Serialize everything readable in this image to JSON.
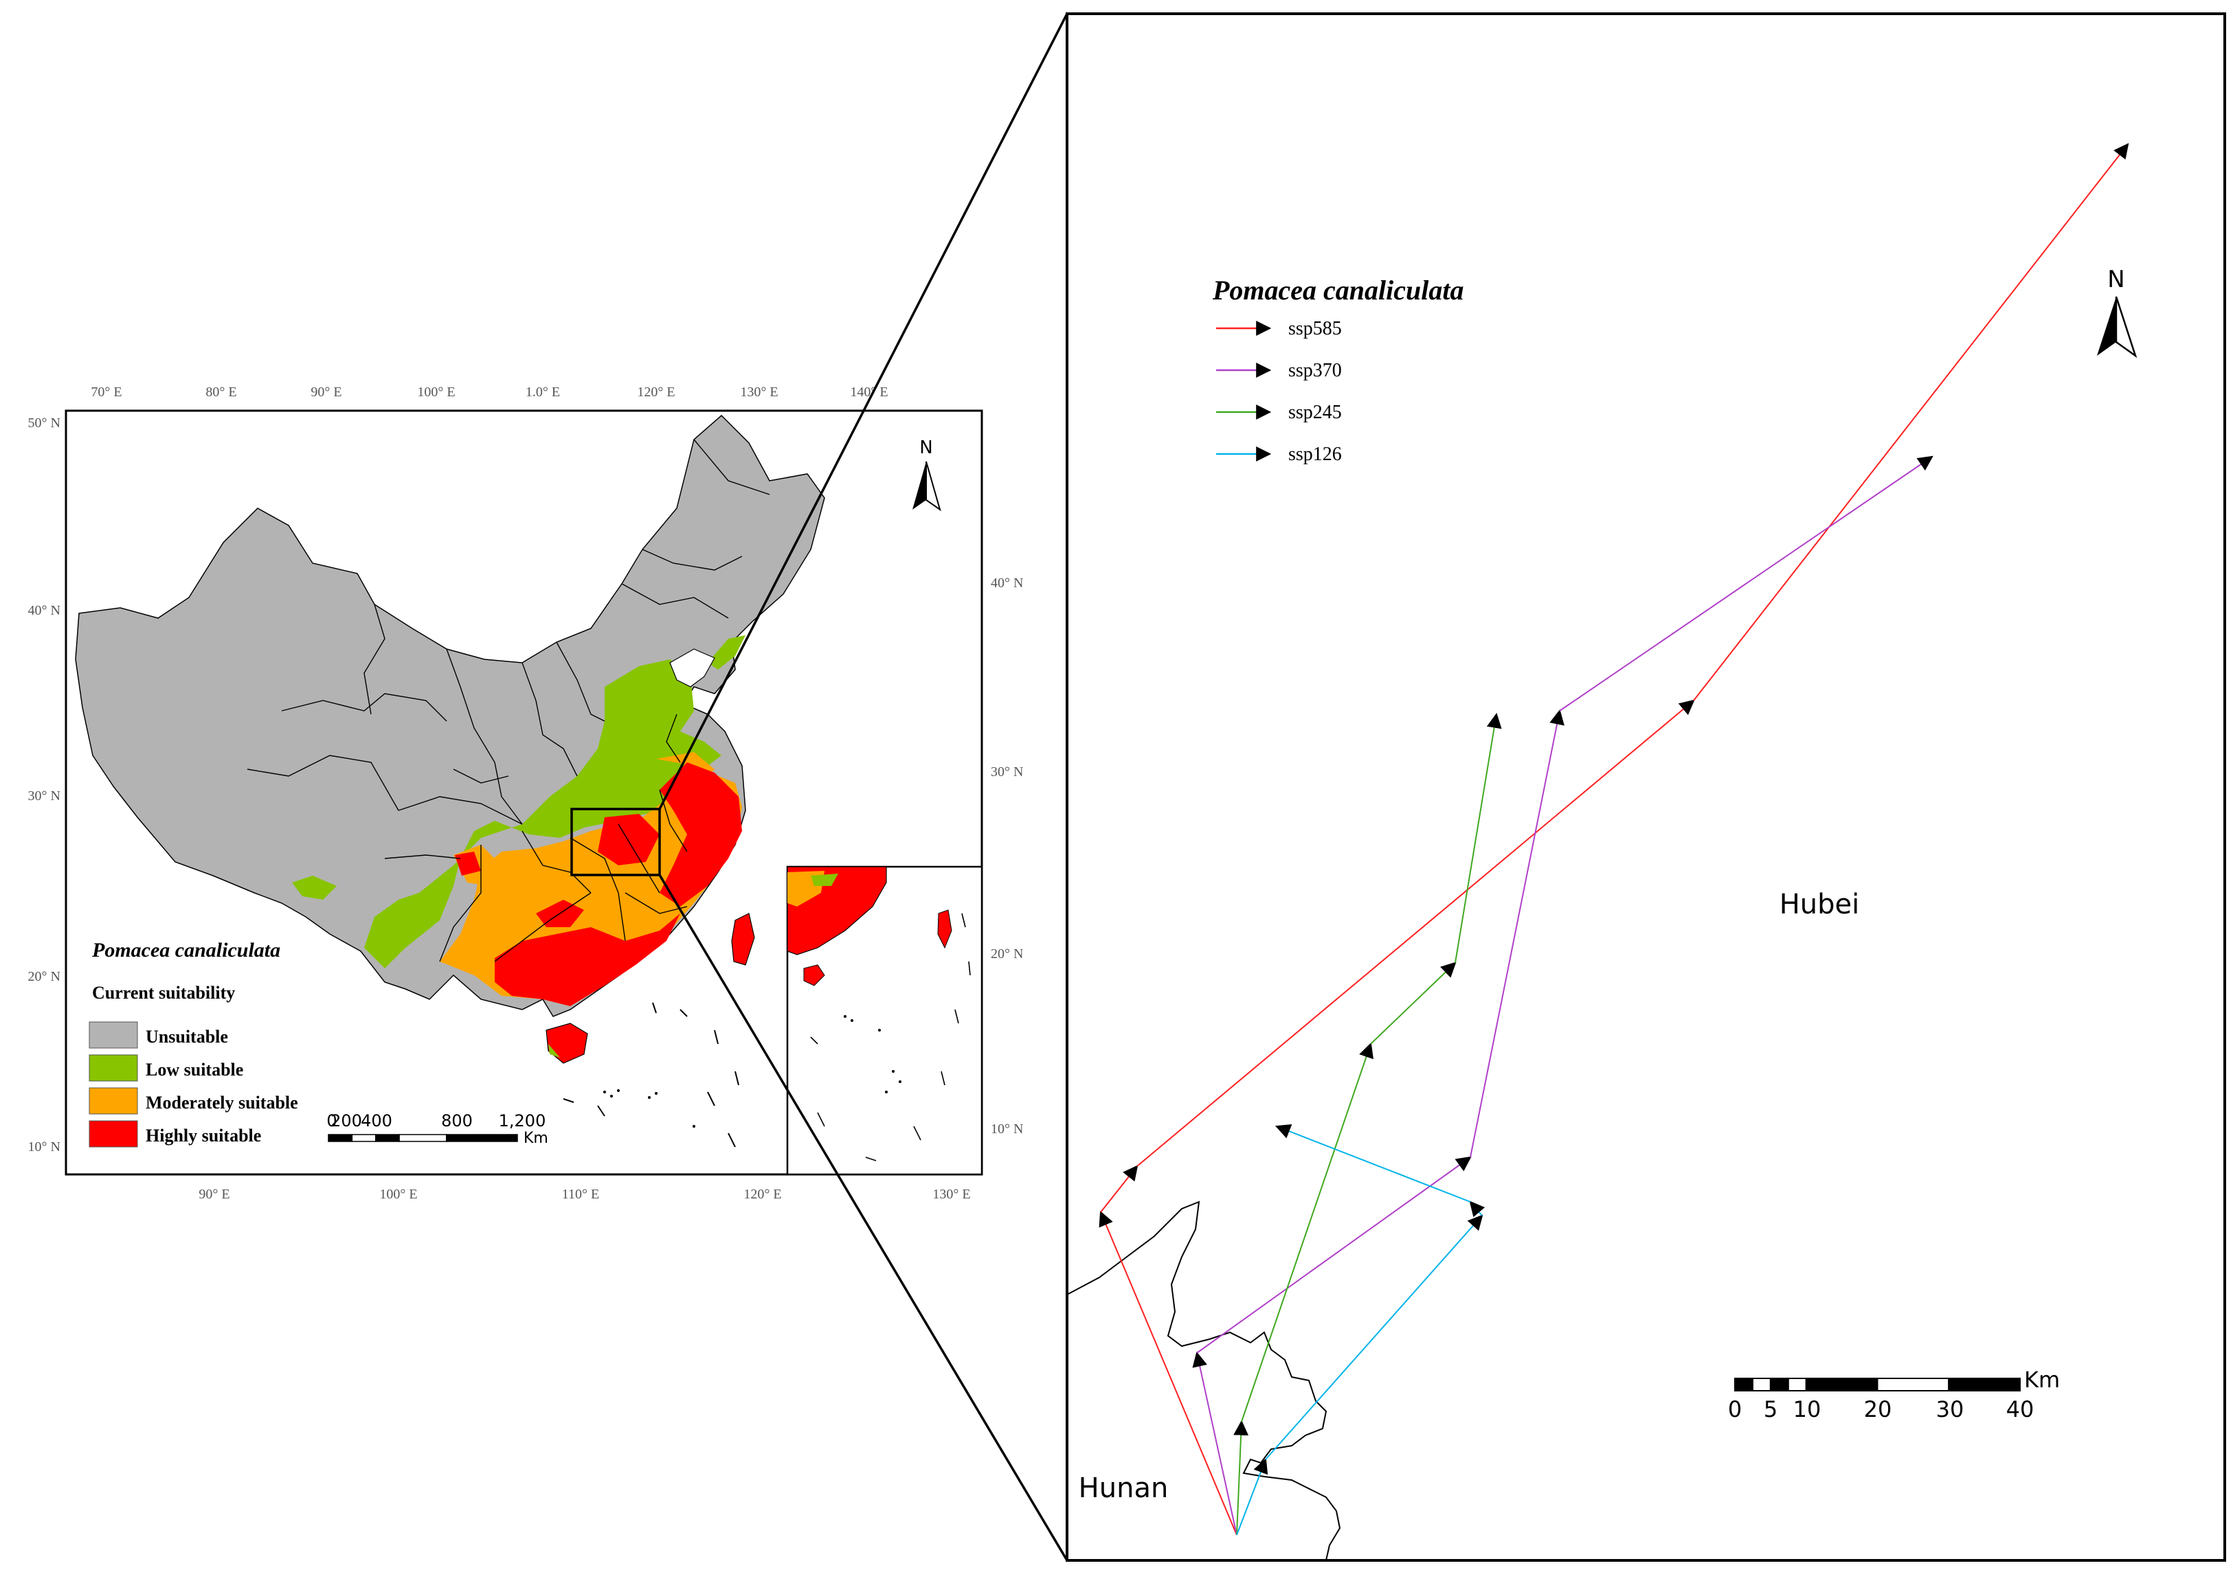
{
  "colors": {
    "unsuitable": "#b3b3b3",
    "low": "#88c400",
    "moderate": "#ffa500",
    "high": "#ff0000",
    "ssp585": "#ff2020",
    "ssp370": "#b040c8",
    "ssp245": "#40a820",
    "ssp126": "#00b4e8"
  },
  "left_map": {
    "top_ticks": [
      "70° E",
      "80° E",
      "90° E",
      "100° E",
      "1.0° E",
      "120° E",
      "130° E",
      "140° E"
    ],
    "bottom_ticks": [
      "90° E",
      "100° E",
      "110° E",
      "120° E",
      "130° E"
    ],
    "left_ticks": [
      "50° N",
      "40° N",
      "30° N",
      "20° N",
      "10° N"
    ],
    "right_ticks": [
      "40° N",
      "30° N",
      "20° N",
      "10° N"
    ],
    "north": "N",
    "legend": {
      "species": "Pomacea canaliculata",
      "subtitle": "Current suitability",
      "classes": [
        {
          "label": "Unsuitable",
          "key": "unsuitable"
        },
        {
          "label": "Low suitable",
          "key": "low"
        },
        {
          "label": "Moderately suitable",
          "key": "moderate"
        },
        {
          "label": "Highly suitable",
          "key": "high"
        }
      ]
    },
    "scale": {
      "labels": [
        "0",
        "200",
        "400",
        "800",
        "1,200"
      ],
      "unit": "Km"
    }
  },
  "right_map": {
    "legend": {
      "species": "Pomacea canaliculata",
      "items": [
        {
          "label": "ssp585",
          "key": "ssp585"
        },
        {
          "label": "ssp370",
          "key": "ssp370"
        },
        {
          "label": "ssp245",
          "key": "ssp245"
        },
        {
          "label": "ssp126",
          "key": "ssp126"
        }
      ]
    },
    "north": "N",
    "regions": [
      "Hubei",
      "Hunan"
    ],
    "scale": {
      "labels": [
        "0",
        "5",
        "10",
        "20",
        "30",
        "40"
      ],
      "unit": "Km"
    }
  }
}
